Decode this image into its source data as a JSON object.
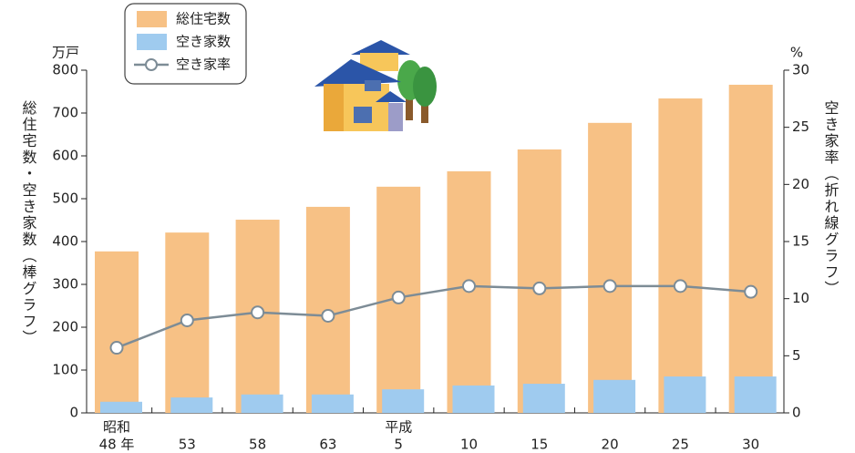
{
  "chart_data": {
    "type": "bar",
    "y_unit": "万戸",
    "y2_unit": "%",
    "y_axis_label": "総住宅数・空き家数（棒グラフ）",
    "y2_axis_label": "空き家率（折れ線グラフ）",
    "era_labels": [
      "昭和",
      null,
      null,
      null,
      "平成",
      null,
      null,
      null,
      null,
      null
    ],
    "categories": [
      "48 年",
      "53",
      "58",
      "63",
      "5",
      "10",
      "15",
      "20",
      "25",
      "30"
    ],
    "series": [
      {
        "name": "総住宅数",
        "color": "#f7c185",
        "values": [
          377,
          421,
          451,
          481,
          528,
          564,
          615,
          677,
          734,
          766
        ]
      },
      {
        "name": "空き家数",
        "color": "#9fcbef",
        "values": [
          26,
          36,
          43,
          43,
          55,
          64,
          68,
          77,
          85,
          85
        ]
      },
      {
        "name": "空き家率",
        "color": "#7d8c96",
        "type": "line",
        "axis": "y2",
        "values": [
          5.7,
          8.1,
          8.8,
          8.5,
          10.1,
          11.1,
          10.9,
          11.1,
          11.1,
          10.6
        ]
      }
    ],
    "ylim": [
      0,
      800
    ],
    "yticks": [
      0,
      100,
      200,
      300,
      400,
      500,
      600,
      700,
      800
    ],
    "y2lim": [
      0,
      30
    ],
    "y2ticks": [
      0,
      5,
      10,
      15,
      20,
      25,
      30
    ]
  }
}
